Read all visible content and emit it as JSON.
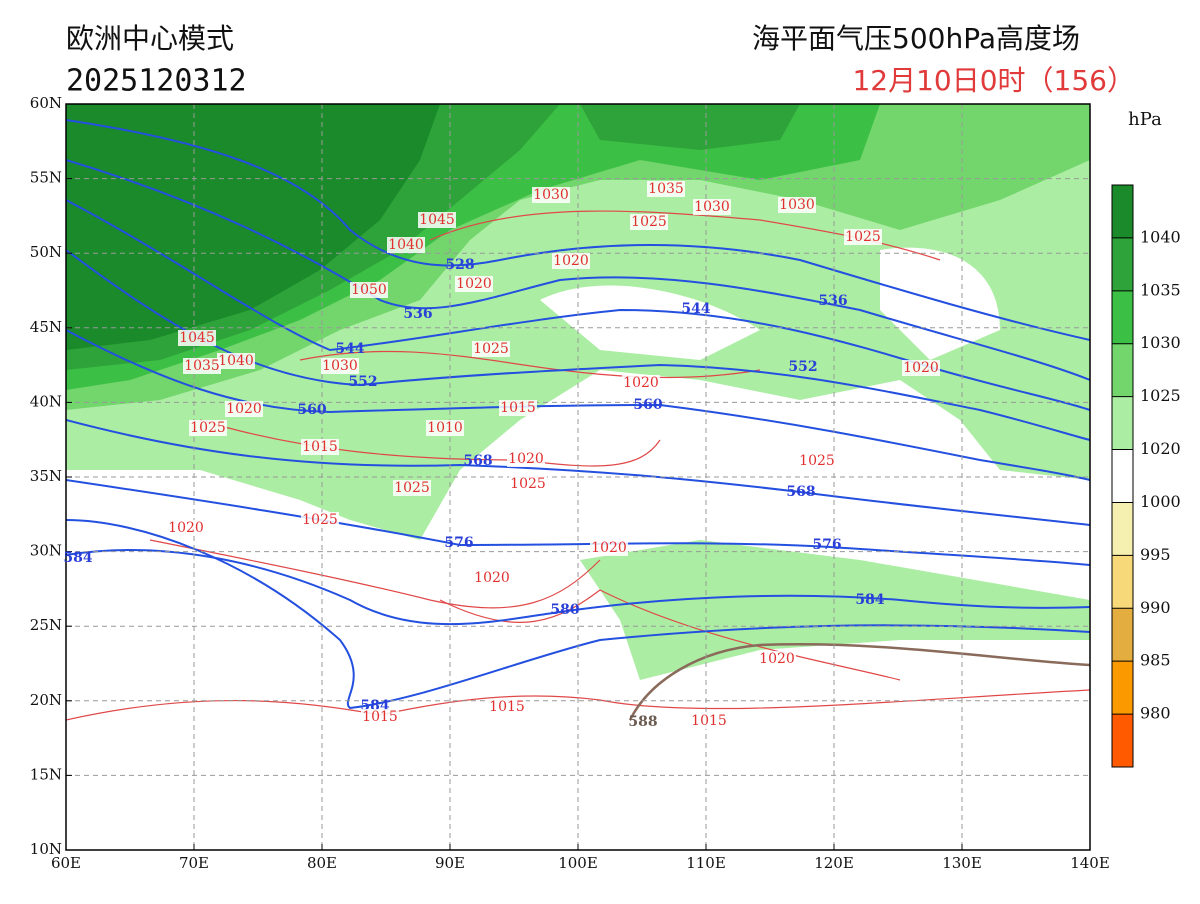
{
  "header": {
    "model": "欧洲中心模式",
    "init_time": "2025120312",
    "title": "海平面气压500hPa高度场",
    "valid_time": "12月10日0时（156）"
  },
  "map": {
    "lon_ticks": [
      "60E",
      "70E",
      "80E",
      "90E",
      "100E",
      "110E",
      "120E",
      "130E",
      "140E"
    ],
    "lat_ticks": [
      "60N",
      "55N",
      "50N",
      "45N",
      "40N",
      "35N",
      "30N",
      "25N",
      "20N",
      "15N",
      "10N"
    ],
    "height_labels": [
      "528",
      "536",
      "544",
      "552",
      "560",
      "568",
      "576",
      "584",
      "580",
      "584",
      "544",
      "560",
      "552",
      "536",
      "568",
      "576",
      "584",
      "588"
    ],
    "pressure_labels": [
      "1030",
      "1035",
      "1025",
      "1030",
      "1030",
      "1025",
      "1045",
      "1040",
      "1020",
      "1020",
      "1050",
      "1045",
      "1040",
      "1035",
      "1030",
      "1025",
      "1020",
      "1015",
      "1010",
      "1020",
      "1025",
      "1015",
      "1020",
      "1025",
      "1025",
      "1025",
      "1020",
      "1020",
      "1020",
      "1025",
      "1020",
      "1020",
      "1015",
      "1015",
      "1015"
    ]
  },
  "colorbar": {
    "unit": "hPa",
    "labels": [
      "1040",
      "1035",
      "1030",
      "1025",
      "1020",
      "1000",
      "995",
      "990",
      "985",
      "980"
    ],
    "colors": [
      "#1a8a2a",
      "#2ea33a",
      "#3cbf45",
      "#72d66c",
      "#acedA4",
      "#ffffff",
      "#f5f0b0",
      "#f7d97a",
      "#e4ad40",
      "#fb9a00",
      "#ff5a00"
    ]
  }
}
